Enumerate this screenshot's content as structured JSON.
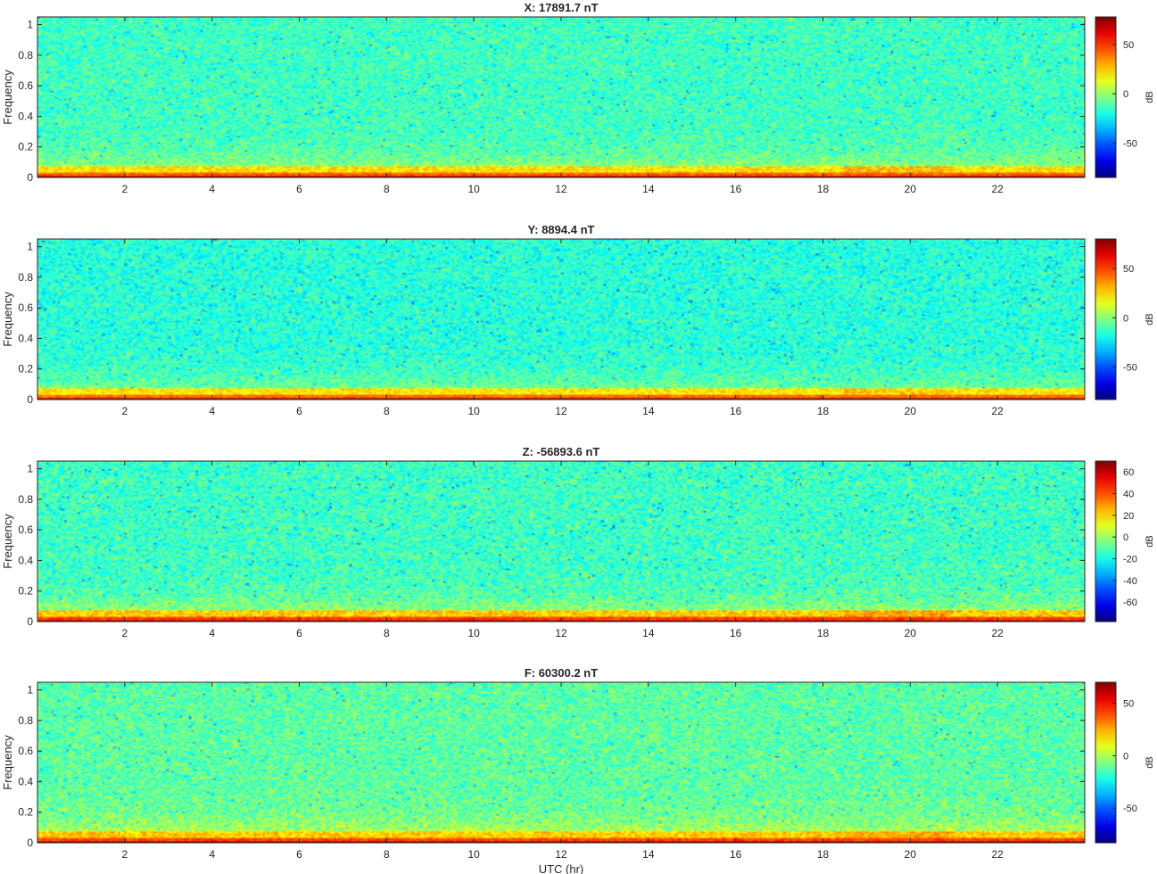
{
  "chart_data": [
    {
      "type": "heatmap",
      "title": "X: 17891.7 nT",
      "xlabel": "",
      "ylabel": "Frequency",
      "xlim": [
        0,
        24
      ],
      "ylim": [
        0,
        1.05
      ],
      "x_ticks": [
        2,
        4,
        6,
        8,
        10,
        12,
        14,
        16,
        18,
        20,
        22
      ],
      "y_ticks": [
        0,
        0.2,
        0.4,
        0.6,
        0.8,
        1
      ],
      "colorbar": {
        "label": "dB",
        "range": [
          -85,
          78
        ],
        "ticks": [
          -50,
          0,
          50
        ]
      },
      "colormap": "jet",
      "level_profile": {
        "background_db": -14,
        "low_freq_db": 22,
        "band_0_db": 70
      }
    },
    {
      "type": "heatmap",
      "title": "Y: 8894.4 nT",
      "xlabel": "",
      "ylabel": "Frequency",
      "xlim": [
        0,
        24
      ],
      "ylim": [
        0,
        1.05
      ],
      "x_ticks": [
        2,
        4,
        6,
        8,
        10,
        12,
        14,
        16,
        18,
        20,
        22
      ],
      "y_ticks": [
        0,
        0.2,
        0.4,
        0.6,
        0.8,
        1
      ],
      "colorbar": {
        "label": "dB",
        "range": [
          -83,
          80
        ],
        "ticks": [
          -50,
          0,
          50
        ]
      },
      "colormap": "jet",
      "level_profile": {
        "background_db": -16,
        "low_freq_db": 22,
        "band_0_db": 72
      }
    },
    {
      "type": "heatmap",
      "title": "Z: -56893.6 nT",
      "xlabel": "",
      "ylabel": "Frequency",
      "xlim": [
        0,
        24
      ],
      "ylim": [
        0,
        1.05
      ],
      "x_ticks": [
        2,
        4,
        6,
        8,
        10,
        12,
        14,
        16,
        18,
        20,
        22
      ],
      "y_ticks": [
        0,
        0.2,
        0.4,
        0.6,
        0.8,
        1
      ],
      "colorbar": {
        "label": "dB",
        "range": [
          -78,
          70
        ],
        "ticks": [
          -60,
          -40,
          -20,
          0,
          20,
          40,
          60
        ]
      },
      "colormap": "jet",
      "level_profile": {
        "background_db": -14,
        "low_freq_db": 22,
        "band_0_db": 62
      }
    },
    {
      "type": "heatmap",
      "title": "F: 60300.2 nT",
      "xlabel": "UTC (hr)",
      "ylabel": "Frequency",
      "xlim": [
        0,
        24
      ],
      "ylim": [
        0,
        1.05
      ],
      "x_ticks": [
        2,
        4,
        6,
        8,
        10,
        12,
        14,
        16,
        18,
        20,
        22
      ],
      "y_ticks": [
        0,
        0.2,
        0.4,
        0.6,
        0.8,
        1
      ],
      "colorbar": {
        "label": "dB",
        "range": [
          -83,
          70
        ],
        "ticks": [
          -50,
          0,
          50
        ]
      },
      "colormap": "jet",
      "level_profile": {
        "background_db": -12,
        "low_freq_db": 20,
        "band_0_db": 64
      }
    }
  ]
}
